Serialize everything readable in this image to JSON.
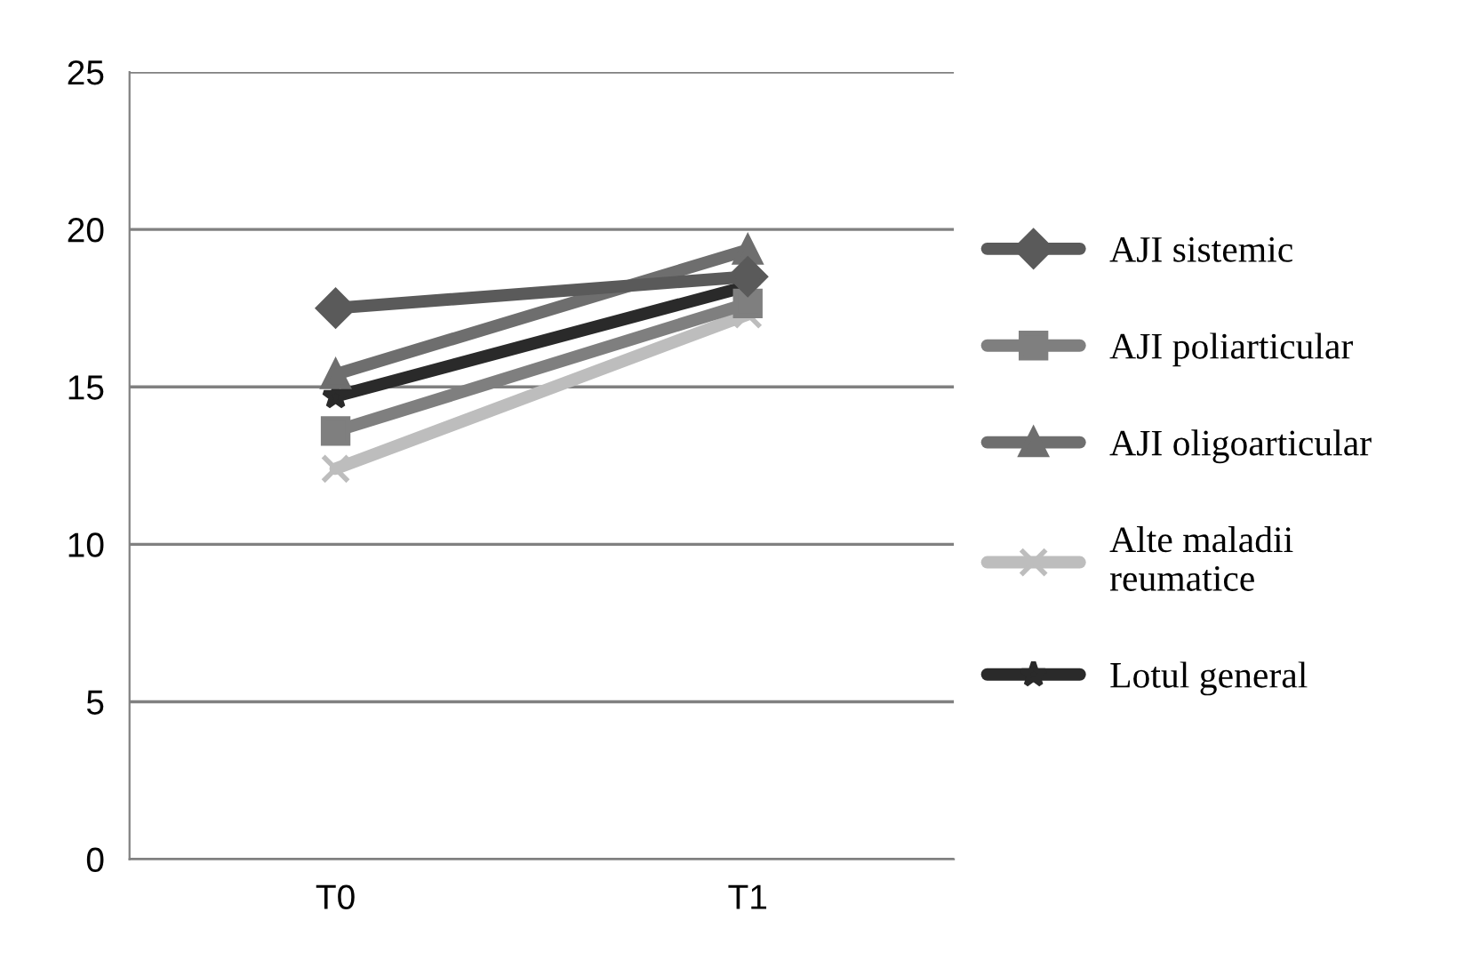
{
  "chart_data": {
    "type": "line",
    "categories": [
      "T0",
      "T1"
    ],
    "series": [
      {
        "name": "AJI sistemic",
        "color": "#5a5a5a",
        "marker": "diamond",
        "values": [
          17.5,
          18.5
        ]
      },
      {
        "name": "AJI poliarticular",
        "color": "#7f7f7f",
        "marker": "square",
        "values": [
          13.6,
          17.65
        ]
      },
      {
        "name": "AJI oligoarticular",
        "color": "#6e6e6e",
        "marker": "triangle",
        "values": [
          15.4,
          19.35
        ]
      },
      {
        "name": "Alte maladii\nreumatice",
        "color": "#bdbdbd",
        "marker": "cross",
        "values": [
          12.4,
          17.3
        ]
      },
      {
        "name": "Lotul general",
        "color": "#2a2a2a",
        "marker": "star",
        "values": [
          14.7,
          18.2
        ]
      }
    ],
    "ylim": [
      0,
      25
    ],
    "yticks": [
      0,
      5,
      10,
      15,
      20,
      25
    ],
    "grid": "y",
    "legend": "right"
  }
}
